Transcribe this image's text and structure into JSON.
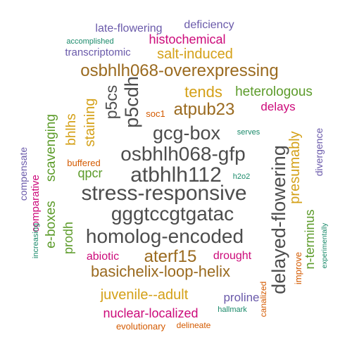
{
  "colors": {
    "dark": "#4d4d4d",
    "olive": "#9a6a1f",
    "gold": "#d4a017",
    "green": "#5c9b2a",
    "magenta": "#cc0a7a",
    "purple": "#6a5aaa",
    "orange": "#d45a00",
    "teal": "#1a8a6a"
  },
  "words": [
    {
      "text": "delayed-flowering",
      "color": "dark"
    },
    {
      "text": "atbhlh112",
      "color": "dark"
    },
    {
      "text": "stress-responsive",
      "color": "dark"
    },
    {
      "text": "homolog-encoded",
      "color": "dark"
    },
    {
      "text": "osbhlh068-gfp",
      "color": "dark"
    },
    {
      "text": "gggtccgtgatac",
      "color": "dark"
    },
    {
      "text": "gcg-box",
      "color": "dark"
    },
    {
      "text": "p5cdh",
      "color": "dark"
    },
    {
      "text": "p5cs",
      "color": "dark"
    },
    {
      "text": "osbhlh068-overexpressing",
      "color": "olive"
    },
    {
      "text": "atpub23",
      "color": "olive"
    },
    {
      "text": "basichelix-loop-helix",
      "color": "olive"
    },
    {
      "text": "aterf15",
      "color": "olive"
    },
    {
      "text": "salt-induced",
      "color": "gold"
    },
    {
      "text": "tends",
      "color": "gold"
    },
    {
      "text": "staining",
      "color": "gold"
    },
    {
      "text": "bhlhs",
      "color": "gold"
    },
    {
      "text": "presumably",
      "color": "gold"
    },
    {
      "text": "juvenile--adult",
      "color": "gold"
    },
    {
      "text": "heterologous",
      "color": "green"
    },
    {
      "text": "scavenging",
      "color": "green"
    },
    {
      "text": "e-boxes",
      "color": "green"
    },
    {
      "text": "qpcr",
      "color": "green"
    },
    {
      "text": "prodh",
      "color": "green"
    },
    {
      "text": "n-terminus",
      "color": "green"
    },
    {
      "text": "histochemical",
      "color": "magenta"
    },
    {
      "text": "delays",
      "color": "magenta"
    },
    {
      "text": "comparative",
      "color": "magenta"
    },
    {
      "text": "abiotic",
      "color": "magenta"
    },
    {
      "text": "drought",
      "color": "magenta"
    },
    {
      "text": "nuclear-localized",
      "color": "magenta"
    },
    {
      "text": "late-flowering",
      "color": "purple"
    },
    {
      "text": "deficiency",
      "color": "purple"
    },
    {
      "text": "transcriptomic",
      "color": "purple"
    },
    {
      "text": "compensate",
      "color": "purple"
    },
    {
      "text": "divergence",
      "color": "purple"
    },
    {
      "text": "proline",
      "color": "purple"
    },
    {
      "text": "soc1",
      "color": "orange"
    },
    {
      "text": "buffered",
      "color": "orange"
    },
    {
      "text": "improve",
      "color": "orange"
    },
    {
      "text": "canalized",
      "color": "orange"
    },
    {
      "text": "evolutionary",
      "color": "orange"
    },
    {
      "text": "delineate",
      "color": "orange"
    },
    {
      "text": "accomplished",
      "color": "teal"
    },
    {
      "text": "serves",
      "color": "teal"
    },
    {
      "text": "h2o2",
      "color": "teal"
    },
    {
      "text": "increasing",
      "color": "teal"
    },
    {
      "text": "experimentally",
      "color": "teal"
    },
    {
      "text": "hallmark",
      "color": "teal"
    }
  ]
}
